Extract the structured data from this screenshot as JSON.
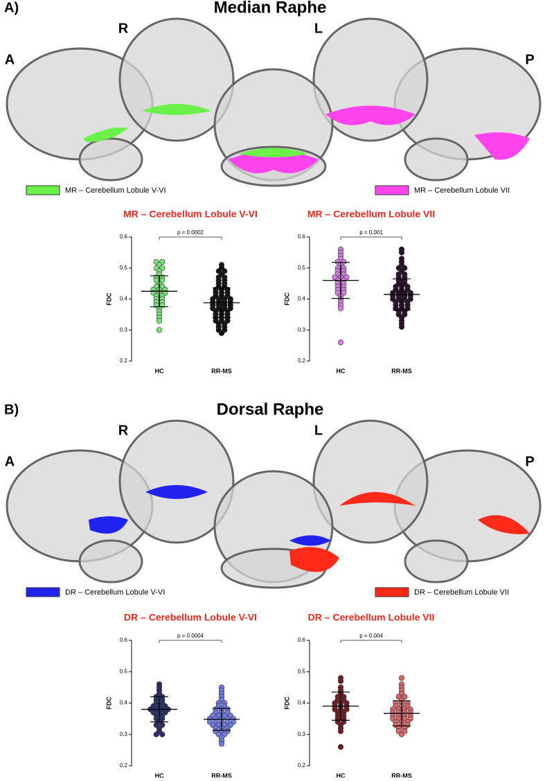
{
  "figure": {
    "panels": [
      {
        "label": "A)",
        "title": "Median Raphe",
        "views": [
          "R",
          "L",
          "A",
          "P"
        ],
        "legend": [
          "MR – Cerebellum Lobule V-VI",
          "MR – Cerebellum Lobule VII"
        ]
      },
      {
        "label": "B)",
        "title": "Dorsal Raphe",
        "views": [
          "R",
          "L",
          "A",
          "P"
        ],
        "legend": [
          "DR – Cerebellum Lobule V-VI",
          "DR – Cerebellum Lobule VII"
        ]
      }
    ]
  },
  "chart_data": [
    {
      "type": "dot",
      "title": "MR – Cerebellum Lobule V-VI",
      "ylabel": "FDC",
      "annotation": "p = 0.0002",
      "categories": [
        "HC",
        "RR-MS"
      ],
      "ylim": [
        0.2,
        0.6
      ],
      "yticks": [
        0.2,
        0.3,
        0.4,
        0.5,
        0.6
      ],
      "groups": [
        {
          "color": "#7ee07a",
          "mean": 0.425,
          "sd": 0.05,
          "values": [
            0.52,
            0.52,
            0.51,
            0.5,
            0.5,
            0.49,
            0.48,
            0.47,
            0.47,
            0.46,
            0.46,
            0.45,
            0.44,
            0.44,
            0.43,
            0.43,
            0.43,
            0.42,
            0.42,
            0.42,
            0.41,
            0.41,
            0.4,
            0.4,
            0.39,
            0.39,
            0.38,
            0.38,
            0.37,
            0.36,
            0.35,
            0.34,
            0.33,
            0.3
          ]
        },
        {
          "color": "#111111",
          "mean": 0.388,
          "sd": 0.048,
          "values": [
            0.51,
            0.5,
            0.49,
            0.49,
            0.48,
            0.47,
            0.47,
            0.46,
            0.46,
            0.45,
            0.45,
            0.44,
            0.44,
            0.43,
            0.43,
            0.43,
            0.42,
            0.42,
            0.42,
            0.41,
            0.41,
            0.41,
            0.4,
            0.4,
            0.4,
            0.4,
            0.39,
            0.39,
            0.39,
            0.39,
            0.38,
            0.38,
            0.38,
            0.38,
            0.37,
            0.37,
            0.37,
            0.37,
            0.36,
            0.36,
            0.36,
            0.35,
            0.35,
            0.35,
            0.34,
            0.34,
            0.34,
            0.33,
            0.33,
            0.33,
            0.32,
            0.32,
            0.31,
            0.31,
            0.3,
            0.3,
            0.29
          ]
        }
      ]
    },
    {
      "type": "dot",
      "title": "MR – Cerebellum Lobule VII",
      "ylabel": "FDC",
      "annotation": "p = 0.001",
      "categories": [
        "HC",
        "RR-MS"
      ],
      "ylim": [
        0.2,
        0.6
      ],
      "yticks": [
        0.2,
        0.3,
        0.4,
        0.5,
        0.6
      ],
      "groups": [
        {
          "color": "#d27ee0",
          "mean": 0.46,
          "sd": 0.058,
          "values": [
            0.56,
            0.55,
            0.54,
            0.53,
            0.52,
            0.52,
            0.51,
            0.5,
            0.5,
            0.49,
            0.49,
            0.48,
            0.48,
            0.47,
            0.47,
            0.47,
            0.46,
            0.46,
            0.45,
            0.45,
            0.44,
            0.44,
            0.43,
            0.43,
            0.42,
            0.42,
            0.41,
            0.4,
            0.39,
            0.38,
            0.37,
            0.26
          ]
        },
        {
          "color": "#2a0f2a",
          "mean": 0.415,
          "sd": 0.05,
          "values": [
            0.56,
            0.55,
            0.53,
            0.52,
            0.51,
            0.5,
            0.5,
            0.49,
            0.48,
            0.48,
            0.47,
            0.47,
            0.46,
            0.46,
            0.45,
            0.45,
            0.44,
            0.44,
            0.44,
            0.43,
            0.43,
            0.43,
            0.42,
            0.42,
            0.42,
            0.42,
            0.41,
            0.41,
            0.41,
            0.41,
            0.4,
            0.4,
            0.4,
            0.4,
            0.39,
            0.39,
            0.39,
            0.38,
            0.38,
            0.38,
            0.37,
            0.37,
            0.37,
            0.36,
            0.36,
            0.35,
            0.35,
            0.34,
            0.33,
            0.32,
            0.31
          ]
        }
      ]
    },
    {
      "type": "dot",
      "title": "DR – Cerebellum Lobule V-VI",
      "ylabel": "FDC",
      "annotation": "p = 0.0004",
      "categories": [
        "HC",
        "RR-MS"
      ],
      "ylim": [
        0.2,
        0.6
      ],
      "yticks": [
        0.2,
        0.3,
        0.4,
        0.5,
        0.6
      ],
      "groups": [
        {
          "color": "#2b2f66",
          "mean": 0.38,
          "sd": 0.04,
          "values": [
            0.46,
            0.45,
            0.44,
            0.43,
            0.42,
            0.42,
            0.41,
            0.41,
            0.4,
            0.4,
            0.39,
            0.39,
            0.39,
            0.38,
            0.38,
            0.38,
            0.38,
            0.37,
            0.37,
            0.37,
            0.36,
            0.36,
            0.35,
            0.35,
            0.34,
            0.33,
            0.33,
            0.32,
            0.31,
            0.3,
            0.3
          ]
        },
        {
          "color": "#6f7be0",
          "mean": 0.348,
          "sd": 0.035,
          "values": [
            0.45,
            0.44,
            0.43,
            0.42,
            0.41,
            0.4,
            0.4,
            0.39,
            0.39,
            0.38,
            0.38,
            0.38,
            0.37,
            0.37,
            0.37,
            0.36,
            0.36,
            0.36,
            0.36,
            0.35,
            0.35,
            0.35,
            0.35,
            0.35,
            0.34,
            0.34,
            0.34,
            0.34,
            0.34,
            0.33,
            0.33,
            0.33,
            0.33,
            0.32,
            0.32,
            0.32,
            0.31,
            0.31,
            0.31,
            0.3,
            0.3,
            0.29,
            0.28,
            0.27
          ]
        }
      ]
    },
    {
      "type": "dot",
      "title": "DR – Cerebellum Lobule VII",
      "ylabel": "FDC",
      "annotation": "p = 0.004",
      "categories": [
        "HC",
        "RR-MS"
      ],
      "ylim": [
        0.2,
        0.6
      ],
      "yticks": [
        0.2,
        0.3,
        0.4,
        0.5,
        0.6
      ],
      "groups": [
        {
          "color": "#6e1f24",
          "mean": 0.39,
          "sd": 0.045,
          "values": [
            0.48,
            0.47,
            0.45,
            0.44,
            0.43,
            0.42,
            0.42,
            0.41,
            0.41,
            0.4,
            0.4,
            0.4,
            0.39,
            0.39,
            0.39,
            0.38,
            0.38,
            0.38,
            0.37,
            0.37,
            0.36,
            0.36,
            0.35,
            0.35,
            0.34,
            0.34,
            0.33,
            0.32,
            0.31,
            0.26
          ]
        },
        {
          "color": "#d9686b",
          "mean": 0.367,
          "sd": 0.04,
          "values": [
            0.48,
            0.46,
            0.45,
            0.44,
            0.43,
            0.42,
            0.42,
            0.41,
            0.4,
            0.4,
            0.4,
            0.39,
            0.39,
            0.39,
            0.38,
            0.38,
            0.38,
            0.38,
            0.37,
            0.37,
            0.37,
            0.37,
            0.36,
            0.36,
            0.36,
            0.36,
            0.35,
            0.35,
            0.35,
            0.35,
            0.34,
            0.34,
            0.34,
            0.33,
            0.33,
            0.33,
            0.32,
            0.32,
            0.31,
            0.31,
            0.3
          ]
        }
      ]
    }
  ]
}
